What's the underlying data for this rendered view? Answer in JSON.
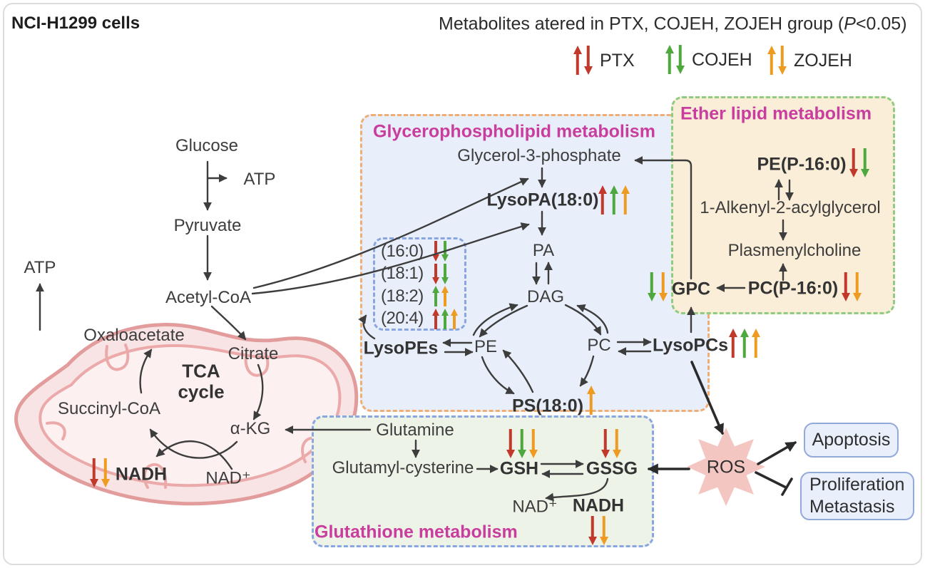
{
  "palette": {
    "r": "#c1392b",
    "g": "#4ea83e",
    "o": "#ee9b22",
    "title_pink": "#c93d9e"
  },
  "colors": {
    "glycero_box_bg": "#e9effa",
    "glycero_box_border": "#f0ae74",
    "ether_box_bg": "#fbeed8",
    "ether_box_border": "#8ecc82",
    "glutathione_box_bg": "#eef3e8",
    "glutathione_box_border": "#8aa6e0",
    "outcome_box_bg": "#e9f0fc",
    "outcome_box_border": "#92aad8",
    "mitochondrion_fill": "#f8e4e4",
    "mitochondrion_stroke": "#e39c9c",
    "ros_fill": "#f3c6c2",
    "connector": "#3d3d3d"
  },
  "header": {
    "cell_line": "NCI-H1299 cells",
    "legend_title_prefix": "Metabolites atered in PTX, COJEH, ZOJEH group (",
    "legend_title_p": "P",
    "legend_title_suffix": "<0.05)",
    "legend": [
      {
        "label": "PTX",
        "arrows": [
          "r-up",
          "r-down"
        ]
      },
      {
        "label": "COJEH",
        "arrows": [
          "g-up",
          "g-down"
        ]
      },
      {
        "label": "ZOJEH",
        "arrows": [
          "o-up",
          "o-down"
        ]
      }
    ]
  },
  "glycolysis": {
    "glucose": "Glucose",
    "atp": "ATP",
    "pyruvate": "Pyruvate",
    "acetyl_coa": "Acetyl-CoA"
  },
  "mitochondrion": {
    "atp": "ATP",
    "oxaloacetate": "Oxaloacetate",
    "citrate": "Citrate",
    "tca": "TCA\ncycle",
    "succinyl_coa": "Succinyl-CoA",
    "alpha_kg": "α-KG",
    "nad": "NAD⁺",
    "nadh": {
      "label": "NADH",
      "arrows": [
        "r-down",
        "o-down"
      ]
    }
  },
  "glycerophospholipid": {
    "title": "Glycerophospholipid metabolism",
    "g3p": "Glycerol-3-phosphate",
    "lysopa": {
      "label": "LysoPA(18:0)",
      "arrows": [
        "r-up",
        "g-up",
        "o-up"
      ]
    },
    "pa": "PA",
    "dag": "DAG",
    "pe": "PE",
    "pc": "PC",
    "lysopes": "LysoPEs",
    "lysopcs": {
      "label": "LysoPCs",
      "arrows": [
        "r-up",
        "g-up",
        "o-up"
      ]
    },
    "ps": {
      "label": "PS(18:0)",
      "arrows": [
        "o-up"
      ]
    },
    "fatty_acids": [
      {
        "label": "(16:0)",
        "arrows": [
          "r-down",
          "g-down"
        ]
      },
      {
        "label": "(18:1)",
        "arrows": [
          "r-down",
          "g-down"
        ]
      },
      {
        "label": "(18:2)",
        "arrows": [
          "g-up",
          "o-up"
        ]
      },
      {
        "label": "(20:4)",
        "arrows": [
          "r-up",
          "g-up",
          "o-up"
        ]
      }
    ]
  },
  "ether_lipid": {
    "title": "Ether lipid metabolism",
    "pep": {
      "label": "PE(P-16:0)",
      "arrows": [
        "r-down",
        "g-down"
      ]
    },
    "alkenyl": "1-Alkenyl-2-acylglycerol",
    "plasmenylcholine": "Plasmenylcholine",
    "pcp": {
      "label": "PC(P-16:0)",
      "arrows": [
        "r-down",
        "o-down"
      ]
    },
    "gpc": {
      "label": "GPC",
      "arrows": [
        "g-down",
        "o-down"
      ]
    }
  },
  "glutathione": {
    "title": "Glutathione metabolism",
    "glutamine": "Glutamine",
    "glutamyl_cysterine": "Glutamyl-cysterine",
    "gsh": {
      "label": "GSH",
      "arrows": [
        "r-down",
        "g-down",
        "o-down"
      ]
    },
    "gssg": {
      "label": "GSSG",
      "arrows": [
        "r-down",
        "o-down"
      ]
    },
    "nad": "NAD⁺",
    "nadh": {
      "label": "NADH",
      "arrows": [
        "r-down",
        "o-down"
      ]
    }
  },
  "ros": {
    "label": "ROS"
  },
  "outcomes": {
    "apoptosis": "Apoptosis",
    "proliferation": "Proliferation",
    "metastasis": "Metastasis"
  }
}
